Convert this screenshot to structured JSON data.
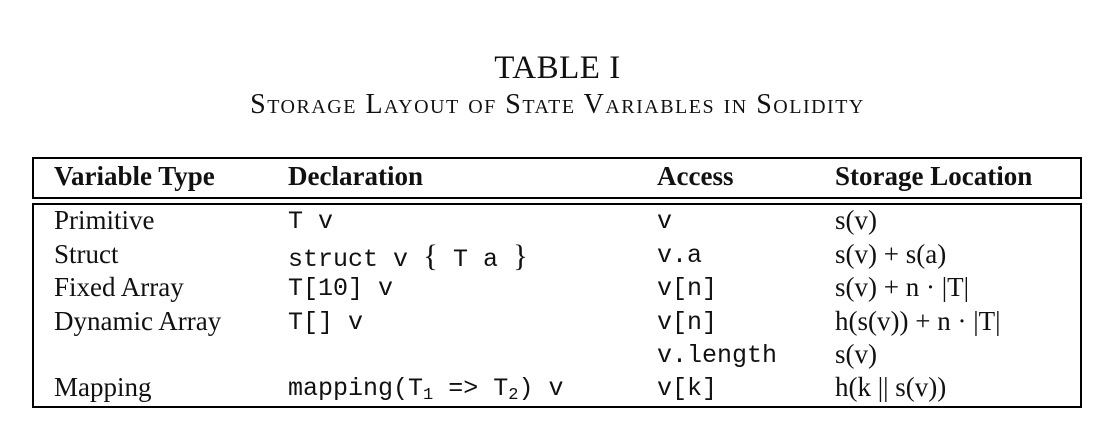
{
  "caption": {
    "number": "TABLE I",
    "title": "Storage Layout of State Variables in Solidity"
  },
  "table": {
    "headers": [
      "Variable Type",
      "Declaration",
      "Access",
      "Storage Location"
    ],
    "rows": [
      {
        "type": "Primitive",
        "access": "v",
        "storage": "s(v)"
      },
      {
        "type": "Struct",
        "access": "v.a",
        "storage": "s(v) + s(a)"
      },
      {
        "type": "Fixed Array",
        "decl": "T[10] v",
        "access": "v[n]",
        "storage": "s(v) + n · |T|"
      },
      {
        "type": "Dynamic Array",
        "decl": "T[] v",
        "access": "v[n]",
        "storage": "h(s(v)) + n · |T|"
      },
      {
        "type": "",
        "decl": "",
        "access": "v.length",
        "storage": "s(v)"
      },
      {
        "type": "Mapping",
        "access": "v[k]",
        "storage": "h(k || s(v))"
      }
    ],
    "decl_primitive": {
      "type": "T",
      "name": "v"
    },
    "decl_struct": {
      "keyword": "struct",
      "name": "v",
      "open": "{",
      "field": "T a",
      "close": "}"
    },
    "decl_mapping": {
      "keyword": "mapping(T",
      "sub1": "1",
      "arrow": " => T",
      "sub2": "2",
      "tail": ") v"
    }
  }
}
